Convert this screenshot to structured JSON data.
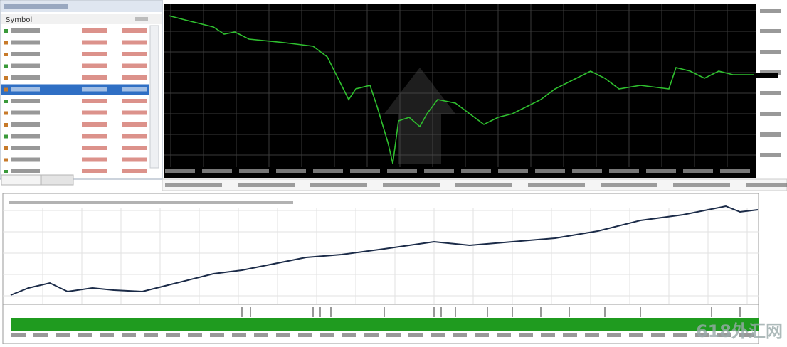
{
  "market_watch": {
    "header": "Symbol"
  },
  "watermark": "618外汇网"
}
